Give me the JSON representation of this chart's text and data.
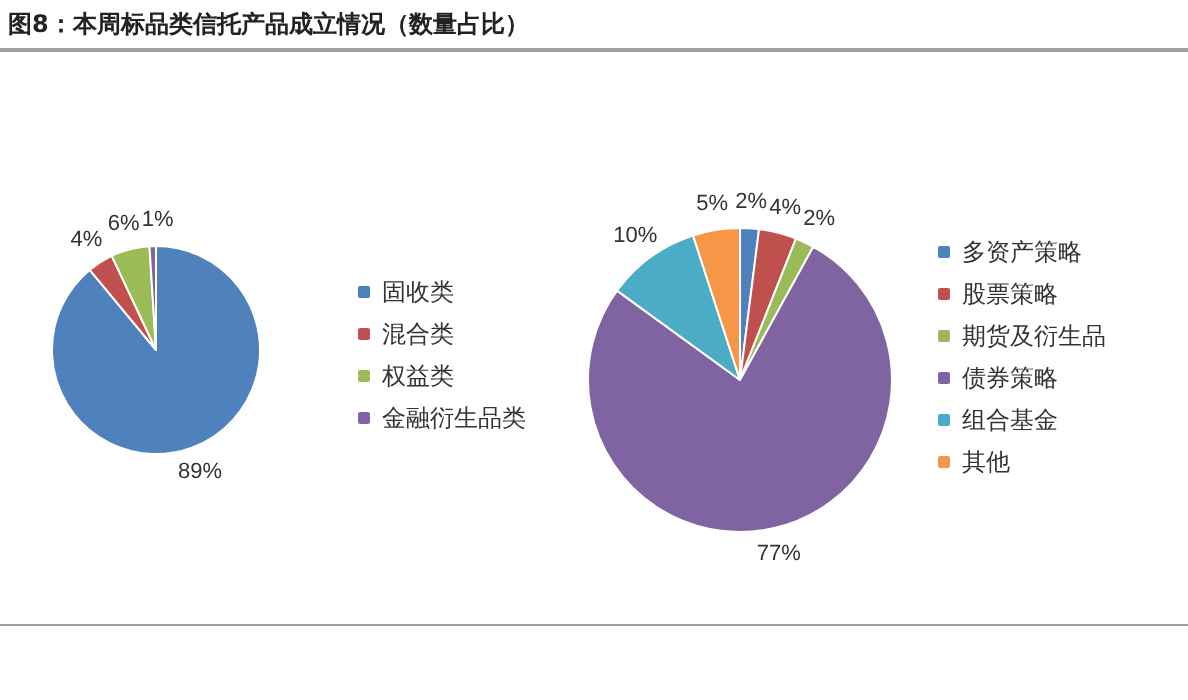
{
  "chart_data": [
    {
      "type": "pie",
      "title": "图8：本周标品类信托产品成立情况（数量占比）",
      "categories": [
        "固收类",
        "混合类",
        "权益类",
        "金融衍生品类"
      ],
      "values": [
        89,
        4,
        6,
        1
      ],
      "colors": [
        "#4f81bd",
        "#c0504d",
        "#9bbb59",
        "#8064a2"
      ],
      "value_labels": [
        "89%",
        "4%",
        "6%",
        "1%"
      ],
      "legend": "right"
    },
    {
      "type": "pie",
      "categories": [
        "多资产策略",
        "股票策略",
        "期货及衍生品",
        "债券策略",
        "组合基金",
        "其他"
      ],
      "values": [
        2,
        4,
        2,
        77,
        10,
        5
      ],
      "colors": [
        "#4f81bd",
        "#c0504d",
        "#9bbb59",
        "#8064a2",
        "#4bacc6",
        "#f79646"
      ],
      "value_labels": [
        "2%",
        "4%",
        "2%",
        "77%",
        "10%",
        "5%"
      ],
      "legend": "right"
    }
  ]
}
